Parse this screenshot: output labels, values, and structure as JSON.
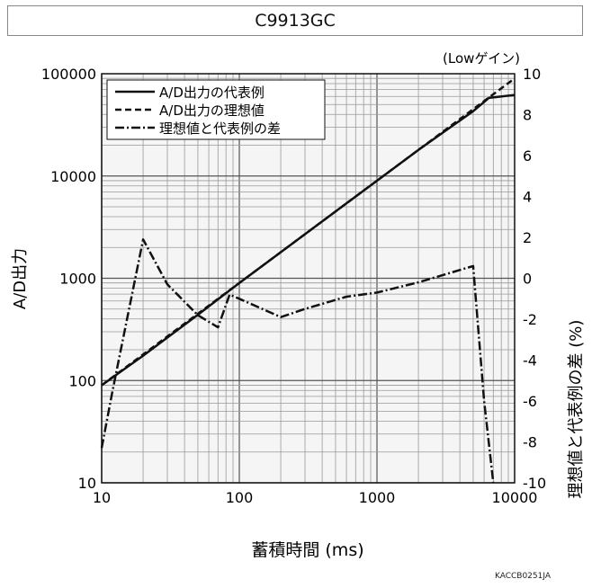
{
  "title": "C9913GC",
  "footer_code": "KACCB0251JA",
  "chart_data": {
    "type": "line",
    "title": "C9913GC",
    "xlabel": "蓄積時間 (ms)",
    "ylabel_left": "A/D出力",
    "ylabel_right": "理想値と代表例の差 (%)",
    "right_axis_note": "(Lowゲイン)",
    "x_scale": "log",
    "y_left_scale": "log",
    "xlim": [
      10,
      10000
    ],
    "ylim_left": [
      10,
      100000
    ],
    "ylim_right": [
      -10,
      10
    ],
    "x_ticks": [
      10,
      100,
      1000,
      10000
    ],
    "x_tick_labels": [
      "10",
      "100",
      "1000",
      "10000"
    ],
    "y_left_ticks": [
      10,
      100,
      1000,
      10000,
      100000
    ],
    "y_left_tick_labels": [
      "10",
      "100",
      "1000",
      "10000",
      "100000"
    ],
    "y_right_ticks": [
      -10,
      -8,
      -6,
      -4,
      -2,
      0,
      2,
      4,
      6,
      8,
      10
    ],
    "y_right_tick_labels": [
      "-10",
      "-8",
      "-6",
      "-4",
      "-2",
      "0",
      "2",
      "4",
      "6",
      "8",
      "10"
    ],
    "grid": true,
    "legend_position": "top-left",
    "series": [
      {
        "name": "A/D出力の代表例",
        "axis": "left",
        "style": "solid",
        "x": [
          10,
          20,
          50,
          100,
          200,
          500,
          1000,
          2000,
          5000,
          6500,
          10000
        ],
        "y": [
          90,
          175,
          440,
          900,
          1800,
          4500,
          9000,
          18000,
          43000,
          58000,
          62000
        ]
      },
      {
        "name": "A/D出力の理想値",
        "axis": "left",
        "style": "dashed",
        "x": [
          10,
          10000
        ],
        "y": [
          90,
          90000
        ]
      },
      {
        "name": "理想値と代表例の差",
        "axis": "right",
        "style": "dashdot",
        "x": [
          10,
          12,
          20,
          30,
          50,
          70,
          85,
          100,
          200,
          300,
          600,
          1000,
          2000,
          5000,
          6000,
          7000
        ],
        "y": [
          -8.3,
          -5.5,
          1.9,
          -0.3,
          -1.8,
          -2.4,
          -0.8,
          -1.0,
          -1.9,
          -1.5,
          -0.9,
          -0.7,
          -0.2,
          0.6,
          -6,
          -10
        ]
      }
    ]
  }
}
